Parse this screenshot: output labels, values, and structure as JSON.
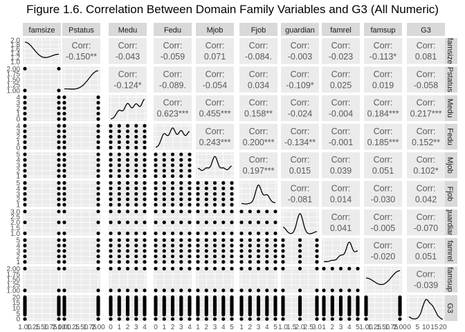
{
  "title": "Figure 1.6. Correlation Between Domain Family Variables and G3 (All Numeric)",
  "chart_data": {
    "type": "scatter",
    "variables": [
      "famsize",
      "Pstatus",
      "Medu",
      "Fedu",
      "Mjob",
      "Fjob",
      "guardian",
      "famrel",
      "famsup",
      "G3"
    ],
    "strip_labels_right": [
      "famsize",
      "Pstatus",
      "Medu",
      "Fedu",
      "Mjob",
      "Fjob",
      "guardian",
      "famrel",
      "famsup",
      "G3"
    ],
    "corr_label": "Corr:",
    "corr_text": [
      [
        "-0.150**",
        "-0.043",
        "-0.059",
        "0.071",
        "-0.084.",
        "-0.003",
        "-0.023",
        "-0.113*",
        "0.081"
      ],
      [
        "-0.124*",
        "-0.089.",
        "-0.054",
        "0.034",
        "-0.109*",
        "0.025",
        "0.019",
        "-0.058"
      ],
      [
        "0.623***",
        "0.455***",
        "0.158**",
        "-0.024",
        "-0.004",
        "0.184***",
        "0.217***"
      ],
      [
        "0.243***",
        "0.200***",
        "-0.134**",
        "-0.001",
        "0.185***",
        "0.152**"
      ],
      [
        "0.197***",
        "0.015",
        "0.039",
        "0.051",
        "0.102*"
      ],
      [
        "-0.081",
        "0.014",
        "-0.030",
        "0.042"
      ],
      [
        "0.041",
        "-0.005",
        "-0.070"
      ],
      [
        "-0.020",
        "0.051"
      ],
      [
        "-0.039"
      ]
    ],
    "ranges": {
      "famsize": [
        1,
        2
      ],
      "Pstatus": [
        1,
        2
      ],
      "Medu": [
        0,
        4
      ],
      "Fedu": [
        0,
        4
      ],
      "Mjob": [
        1,
        5
      ],
      "Fjob": [
        1,
        5
      ],
      "guardian": [
        1,
        3
      ],
      "famrel": [
        1,
        5
      ],
      "famsup": [
        1,
        2
      ],
      "G3": [
        0,
        20
      ]
    },
    "levels": {
      "famsize": [
        1,
        2
      ],
      "Pstatus": [
        1,
        2
      ],
      "Medu": [
        0,
        1,
        2,
        3,
        4
      ],
      "Fedu": [
        0,
        1,
        2,
        3,
        4
      ],
      "Mjob": [
        1,
        2,
        3,
        4,
        5
      ],
      "Fjob": [
        1,
        2,
        3,
        4,
        5
      ],
      "guardian": [
        1,
        2,
        3
      ],
      "famrel": [
        1,
        2,
        3,
        4,
        5
      ],
      "famsup": [
        1,
        2
      ],
      "G3": [
        0,
        4,
        5,
        6,
        7,
        8,
        9,
        10,
        11,
        12,
        13,
        14,
        15,
        16,
        17,
        18,
        19,
        20
      ]
    },
    "density_weights": {
      "famsize": [
        0.71,
        0.29
      ],
      "Pstatus": [
        0.1,
        0.9
      ],
      "Medu": [
        0.01,
        0.15,
        0.26,
        0.25,
        0.33
      ],
      "Fedu": [
        0.01,
        0.21,
        0.29,
        0.25,
        0.24
      ],
      "Mjob": [
        0.15,
        0.15,
        0.36,
        0.15,
        0.19
      ],
      "Fjob": [
        0.05,
        0.05,
        0.55,
        0.28,
        0.07
      ],
      "guardian": [
        0.23,
        0.69,
        0.08
      ],
      "famrel": [
        0.02,
        0.05,
        0.17,
        0.49,
        0.27
      ],
      "famsup": [
        0.39,
        0.61
      ]
    },
    "g3_density": {
      "x": [
        0,
        2,
        4,
        5,
        6,
        7,
        8,
        9,
        10,
        11,
        12,
        13,
        14,
        15,
        16,
        17,
        18,
        19,
        20
      ],
      "y": [
        0.018,
        0.006,
        0.005,
        0.01,
        0.022,
        0.04,
        0.075,
        0.105,
        0.125,
        0.12,
        0.105,
        0.095,
        0.085,
        0.065,
        0.045,
        0.025,
        0.015,
        0.006,
        0.003
      ]
    },
    "y_ticks": {
      "famsize": [
        "1.0",
        "1.2",
        "1.4",
        "1.6",
        "1.8",
        "2.0"
      ],
      "Pstatus": [
        "1.00",
        "1.25",
        "1.50",
        "1.75",
        "2.00"
      ],
      "Medu": [
        "0",
        "1",
        "2",
        "3",
        "4"
      ],
      "Fedu": [
        "0",
        "1",
        "2",
        "3",
        "4"
      ],
      "Mjob": [
        "1",
        "2",
        "3",
        "4",
        "5"
      ],
      "Fjob": [
        "1",
        "2",
        "3",
        "4",
        "5"
      ],
      "guardian": [
        "1.0",
        "1.5",
        "2.0",
        "2.5",
        "3.0"
      ],
      "famrel": [
        "1",
        "2",
        "3",
        "4",
        "5"
      ],
      "famsup": [
        "1.00",
        "1.25",
        "1.50",
        "1.75",
        "2.00"
      ],
      "G3": [
        "0",
        "5",
        "10",
        "15",
        "20"
      ]
    },
    "x_ticks": {
      "famsize": [
        "1.00",
        "1.25",
        "1.50",
        "1.75",
        "2.00"
      ],
      "Pstatus": [
        "1.00",
        "1.25",
        "1.50",
        "1.75",
        "2.00"
      ],
      "Medu": [
        "0",
        "1",
        "2",
        "3",
        "4"
      ],
      "Fedu": [
        "0",
        "1",
        "2",
        "3",
        "4"
      ],
      "Mjob": [
        "1",
        "2",
        "3",
        "4",
        "5"
      ],
      "Fjob": [
        "1",
        "2",
        "3",
        "4",
        "5"
      ],
      "guardian": [
        "1.0",
        "1.5",
        "2.0",
        "2.5",
        "3.0"
      ],
      "famrel": [
        "1",
        "2",
        "3",
        "4",
        "5"
      ],
      "famsup": [
        "1.00",
        "1.25",
        "1.50",
        "1.75",
        "2.00"
      ],
      "G3": [
        "0",
        "5",
        "10",
        "15",
        "20"
      ]
    },
    "colors": {
      "panel_bg": "#ebebeb",
      "grid": "#ffffff",
      "strip_bg": "#d9d9d9",
      "points": "#000000",
      "corr_text": "#595959"
    }
  }
}
